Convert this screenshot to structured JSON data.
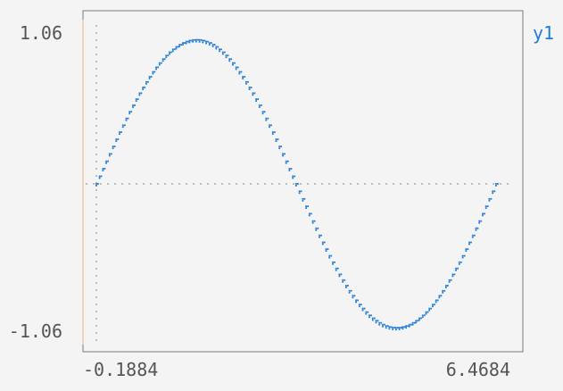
{
  "chart_data": {
    "type": "scatter",
    "x_ticks": [
      "-0.1884",
      "6.4684"
    ],
    "y_ticks": [
      "1.06",
      "-1.06"
    ],
    "xlim": [
      -0.1884,
      6.4684
    ],
    "ylim": [
      -1.06,
      1.06
    ],
    "legend": {
      "position": "top-right"
    },
    "grid": false,
    "series": [
      {
        "name": "y1",
        "color": "#1f7bd6",
        "function": "sin",
        "x_start": 0,
        "x_end": 6.2832,
        "point_count": 120
      }
    ],
    "zero_lines": {
      "color": "#bdbdbd"
    }
  },
  "colors": {
    "frame": "#7a7a7a",
    "left_accent": "#f0b27a",
    "background": "#f4f4f4",
    "legend_text": "#1f7bd6"
  }
}
